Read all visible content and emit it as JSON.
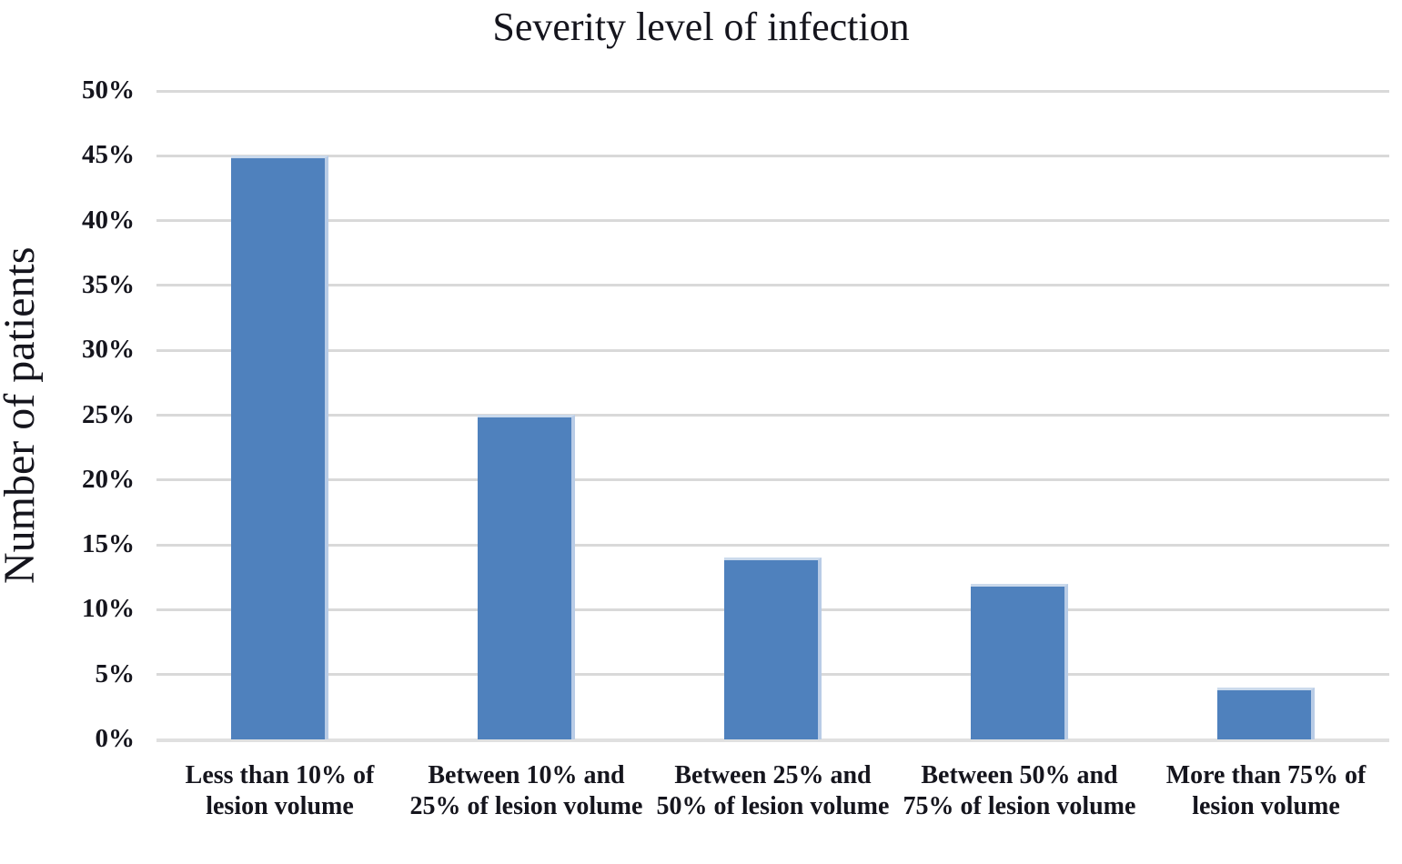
{
  "chart_data": {
    "type": "bar",
    "title": "Severity level of infection",
    "ylabel": "Number of patients",
    "xlabel": "",
    "categories": [
      "Less than 10% of lesion volume",
      "Between 10% and 25% of lesion volume",
      "Between 25% and 50% of lesion volume",
      "Between 50% and 75% of lesion volume",
      "More than 75% of lesion volume"
    ],
    "values": [
      45,
      25,
      14,
      12,
      4
    ],
    "value_unit": "%",
    "ylim": [
      0,
      50
    ],
    "y_ticks": [
      "0%",
      "5%",
      "10%",
      "15%",
      "20%",
      "25%",
      "30%",
      "35%",
      "40%",
      "45%",
      "50%"
    ],
    "grid": "horizontal",
    "legend": "none",
    "colors": {
      "bar": "#4f81bd",
      "bar_edge_right": "#b9cce6",
      "bar_edge_top": "#cbdaec",
      "gridline": "#d9d9d9",
      "baseline": "#e0e0e0",
      "text": "#15151d",
      "background": "#ffffff"
    }
  }
}
